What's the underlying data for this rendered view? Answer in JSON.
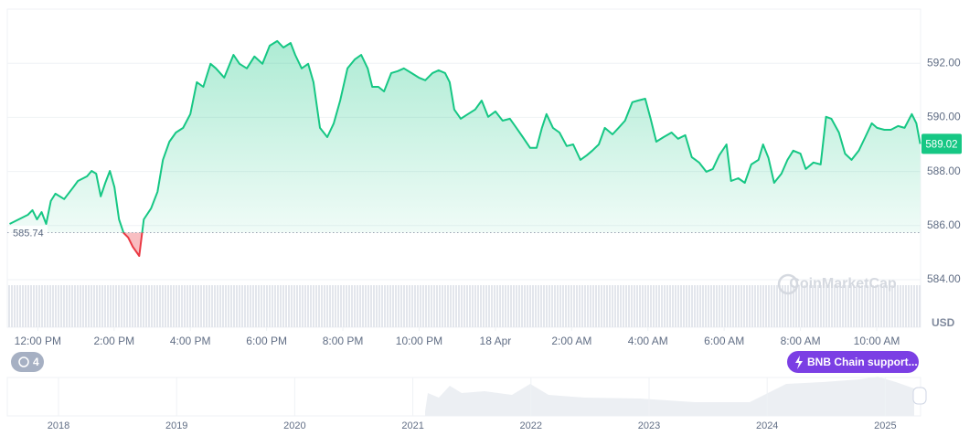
{
  "chart_data": {
    "type": "line",
    "x": [
      -0.74,
      -0.5,
      -0.26,
      -0.14,
      -0.02,
      0.1,
      0.22,
      0.34,
      0.46,
      0.69,
      0.93,
      1.05,
      1.29,
      1.41,
      1.53,
      1.65,
      1.77,
      1.89,
      2.01,
      2.13,
      2.25,
      2.37,
      2.49,
      2.66,
      2.78,
      2.97,
      3.14,
      3.28,
      3.45,
      3.62,
      3.81,
      4.0,
      4.17,
      4.34,
      4.53,
      4.67,
      4.89,
      5.13,
      5.29,
      5.48,
      5.68,
      5.89,
      6.08,
      6.28,
      6.44,
      6.63,
      6.75,
      6.92,
      7.09,
      7.23,
      7.4,
      7.59,
      7.76,
      7.93,
      8.12,
      8.31,
      8.48,
      8.65,
      8.77,
      8.93,
      9.08,
      9.27,
      9.44,
      9.6,
      9.8,
      9.99,
      10.16,
      10.35,
      10.51,
      10.68,
      10.8,
      10.92,
      11.09,
      11.28,
      11.47,
      11.64,
      11.81,
      12.0,
      12.19,
      12.38,
      12.55,
      12.72,
      12.91,
      13.08,
      13.22,
      13.34,
      13.51,
      13.68,
      13.87,
      14.04,
      14.23,
      14.4,
      14.54,
      14.71,
      14.87,
      15.07,
      15.23,
      15.4,
      15.59,
      15.74,
      15.93,
      16.07,
      16.22,
      16.41,
      16.62,
      16.79,
      16.98,
      17.15,
      17.34,
      17.53,
      17.7,
      17.87,
      18.06,
      18.18,
      18.37,
      18.54,
      18.71,
      18.9,
      19.02,
      19.16,
      19.31,
      19.5,
      19.66,
      19.81,
      20.0,
      20.14,
      20.34,
      20.53,
      20.67,
      20.81,
      21.01,
      21.17,
      21.34,
      21.53,
      21.7,
      21.87,
      22.01,
      22.2,
      22.37,
      22.56,
      22.73,
      22.92,
      23.04,
      23.14
    ],
    "values": [
      586.06,
      586.23,
      586.4,
      586.57,
      586.23,
      586.5,
      586.06,
      586.91,
      587.18,
      586.98,
      587.42,
      587.65,
      587.82,
      588.02,
      587.92,
      587.08,
      587.58,
      588.02,
      587.42,
      586.23,
      585.73,
      585.56,
      585.22,
      584.88,
      586.23,
      586.64,
      587.25,
      588.43,
      589.1,
      589.44,
      589.61,
      590.12,
      591.3,
      591.13,
      591.98,
      591.81,
      591.47,
      592.31,
      591.98,
      591.81,
      592.25,
      591.98,
      592.65,
      592.82,
      592.58,
      592.75,
      592.31,
      591.81,
      591.98,
      591.3,
      589.61,
      589.27,
      589.78,
      590.62,
      591.81,
      592.14,
      592.31,
      591.81,
      591.13,
      591.13,
      590.96,
      591.64,
      591.71,
      591.81,
      591.64,
      591.47,
      591.37,
      591.64,
      591.74,
      591.64,
      591.3,
      590.29,
      589.95,
      590.12,
      590.29,
      590.62,
      590.02,
      590.22,
      589.88,
      589.95,
      589.61,
      589.27,
      588.87,
      588.87,
      589.61,
      590.12,
      589.61,
      589.44,
      588.94,
      589.0,
      588.43,
      588.6,
      588.77,
      589.0,
      589.61,
      589.37,
      589.61,
      589.88,
      590.56,
      590.62,
      590.69,
      589.95,
      589.1,
      589.27,
      589.44,
      589.21,
      589.34,
      588.53,
      588.33,
      587.99,
      588.09,
      588.6,
      589.0,
      587.65,
      587.75,
      587.58,
      588.26,
      588.43,
      589.0,
      588.5,
      587.58,
      587.92,
      588.43,
      588.77,
      588.66,
      588.09,
      588.33,
      588.26,
      590.02,
      589.95,
      589.44,
      588.66,
      588.43,
      588.77,
      589.27,
      589.78,
      589.61,
      589.54,
      589.54,
      589.68,
      589.61,
      590.12,
      589.78,
      589.02
    ],
    "color": "#16c784",
    "down_color": "#ea3943",
    "baseline": 585.74,
    "xlim": [
      -0.8,
      23.15
    ],
    "xticks": [
      {
        "value": 0,
        "label": "12:00 PM"
      },
      {
        "value": 2,
        "label": "2:00 PM"
      },
      {
        "value": 4,
        "label": "4:00 PM"
      },
      {
        "value": 6,
        "label": "6:00 PM"
      },
      {
        "value": 8,
        "label": "8:00 PM"
      },
      {
        "value": 10,
        "label": "10:00 PM"
      },
      {
        "value": 12,
        "label": "18 Apr"
      },
      {
        "value": 14,
        "label": "2:00 AM"
      },
      {
        "value": 16,
        "label": "4:00 AM"
      },
      {
        "value": 18,
        "label": "6:00 AM"
      },
      {
        "value": 20,
        "label": "8:00 AM"
      },
      {
        "value": 22,
        "label": "10:00 AM"
      }
    ],
    "ylim": [
      584,
      594
    ],
    "yticks": [
      {
        "value": 584,
        "label": "584.00"
      },
      {
        "value": 586,
        "label": "586.00"
      },
      {
        "value": 588,
        "label": "588.00"
      },
      {
        "value": 590,
        "label": "590.00"
      },
      {
        "value": 592,
        "label": "592.00"
      }
    ],
    "y_unit": "USD",
    "grid": true
  },
  "ui": {
    "watermark": "CoinMarketCap",
    "history_badge": "4",
    "event_badge": "BNB Chain support..."
  },
  "navigator": {
    "years": [
      "2018",
      "2019",
      "2020",
      "2021",
      "2022",
      "2023",
      "2024",
      "2025"
    ]
  }
}
